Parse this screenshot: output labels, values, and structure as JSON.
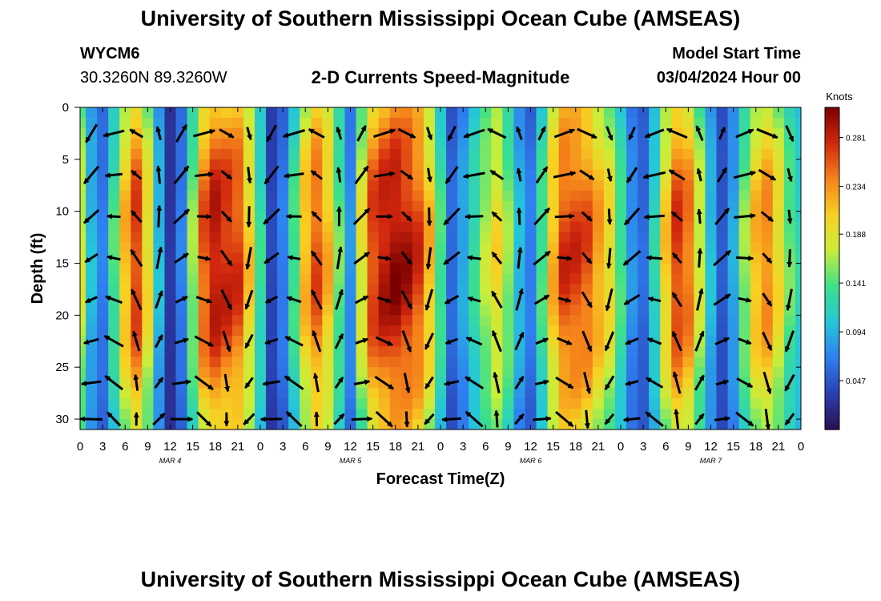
{
  "page": {
    "title": "University of Southern Mississippi Ocean Cube (AMSEAS)",
    "station_id": "WYCM6",
    "location": "30.3260N  89.3260W",
    "subtitle": "2-D Currents Speed-Magnitude",
    "model_start_label": "Model Start Time",
    "model_start_value": "03/04/2024 Hour 00",
    "footer_title": "University of Southern Mississippi Ocean Cube (AMSEAS)"
  },
  "colors": {
    "arrow": "#000000",
    "colormap": [
      "#2b0f4f",
      "#2a3fb0",
      "#2f7ef0",
      "#25c7d8",
      "#3de08a",
      "#c8ee3a",
      "#f8d023",
      "#f5821b",
      "#d2270e",
      "#7a0000"
    ]
  },
  "chart_data": {
    "type": "heatmap",
    "title": "2-D Currents Speed-Magnitude",
    "xlabel": "Forecast Time(Z)",
    "ylabel": "Depth (ft)",
    "x_tick_labels": [
      "0",
      "3",
      "6",
      "9",
      "12",
      "15",
      "18",
      "21",
      "0",
      "3",
      "6",
      "9",
      "12",
      "15",
      "18",
      "21",
      "0",
      "3",
      "6",
      "9",
      "12",
      "15",
      "18",
      "21",
      "0",
      "3",
      "6",
      "9",
      "12",
      "15",
      "18",
      "21",
      "0"
    ],
    "date_labels": [
      "MAR 4",
      "MAR 5",
      "MAR 6",
      "MAR 7"
    ],
    "xlim_hours": [
      0,
      96
    ],
    "y_tick_labels": [
      "0",
      "5",
      "10",
      "15",
      "20",
      "25",
      "30"
    ],
    "ylim_ft": [
      0,
      31
    ],
    "y_inverted": true,
    "colorbar": {
      "unit": "Knots",
      "tick_labels": [
        "0.281",
        "0.234",
        "0.188",
        "0.141",
        "0.094",
        "0.047"
      ],
      "range": [
        0,
        0.31
      ]
    },
    "speed_columns": {
      "hours": [
        0,
        1.5,
        3,
        4.5,
        6,
        7.5,
        9,
        10.5,
        12,
        13.5,
        15,
        16.5,
        18,
        19.5,
        21,
        22.5,
        24,
        25.5,
        27,
        28.5,
        30,
        31.5,
        33,
        34.5,
        36,
        37.5,
        39,
        40.5,
        42,
        43.5,
        45,
        46.5,
        48,
        49.5,
        51,
        52.5,
        54,
        55.5,
        57,
        58.5,
        60,
        61.5,
        63,
        64.5,
        66,
        67.5,
        69,
        70.5,
        72,
        73.5,
        75,
        76.5,
        78,
        79.5,
        81,
        82.5,
        84,
        85.5,
        87,
        88.5,
        90,
        91.5,
        93,
        94.5,
        96
      ],
      "mid_depth_speed_knots": [
        0.18,
        0.1,
        0.07,
        0.14,
        0.22,
        0.27,
        0.2,
        0.1,
        0.03,
        0.07,
        0.16,
        0.26,
        0.29,
        0.28,
        0.27,
        0.21,
        0.13,
        0.04,
        0.07,
        0.14,
        0.22,
        0.26,
        0.22,
        0.15,
        0.08,
        0.19,
        0.27,
        0.29,
        0.3,
        0.29,
        0.27,
        0.22,
        0.14,
        0.06,
        0.09,
        0.13,
        0.17,
        0.2,
        0.16,
        0.1,
        0.07,
        0.14,
        0.22,
        0.27,
        0.27,
        0.26,
        0.23,
        0.2,
        0.14,
        0.08,
        0.06,
        0.12,
        0.21,
        0.27,
        0.25,
        0.18,
        0.1,
        0.05,
        0.09,
        0.16,
        0.22,
        0.24,
        0.2,
        0.15,
        0.12
      ]
    }
  }
}
